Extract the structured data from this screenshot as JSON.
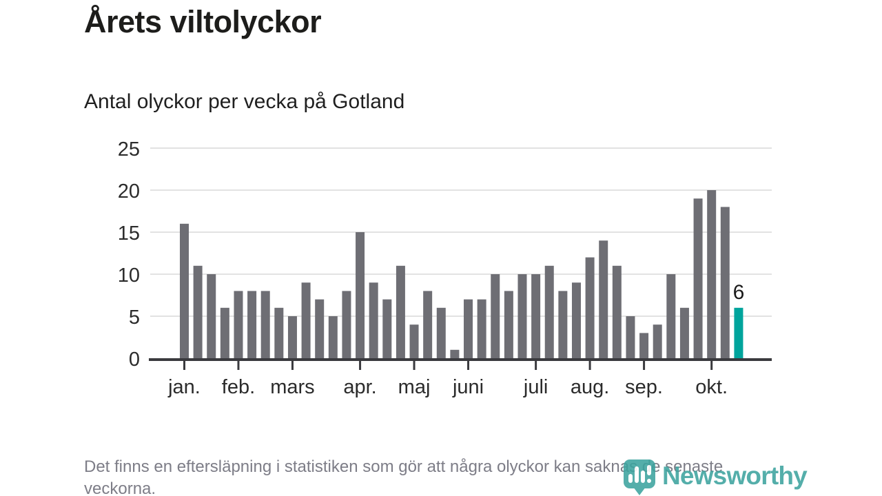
{
  "header": {
    "title": "Årets viltolyckor",
    "subtitle": "Antal olyckor per vecka på Gotland"
  },
  "chart_data": {
    "type": "bar",
    "title": "Årets viltolyckor",
    "subtitle": "Antal olyckor per vecka på Gotland",
    "x_unit": "vecka (week of year)",
    "categories_weeks": [
      1,
      2,
      3,
      4,
      5,
      6,
      7,
      8,
      9,
      10,
      11,
      12,
      13,
      14,
      15,
      16,
      17,
      18,
      19,
      20,
      21,
      22,
      23,
      24,
      25,
      26,
      27,
      28,
      29,
      30,
      31,
      32,
      33,
      34,
      35,
      36,
      37,
      38,
      39,
      40,
      41,
      42
    ],
    "values": [
      16,
      11,
      10,
      6,
      8,
      8,
      8,
      6,
      5,
      9,
      7,
      5,
      8,
      15,
      9,
      7,
      11,
      4,
      8,
      6,
      1,
      7,
      7,
      10,
      8,
      10,
      10,
      11,
      8,
      9,
      12,
      14,
      11,
      5,
      3,
      4,
      10,
      6,
      19,
      20,
      18,
      6
    ],
    "highlight_index": 41,
    "highlight_label": "6",
    "ylim": [
      0,
      25
    ],
    "yticks": [
      0,
      5,
      10,
      15,
      20,
      25
    ],
    "grid": "horizontal",
    "legend": "none",
    "month_ticks": [
      {
        "label": "jan.",
        "week": 1
      },
      {
        "label": "feb.",
        "week": 5
      },
      {
        "label": "mars",
        "week": 9
      },
      {
        "label": "apr.",
        "week": 14
      },
      {
        "label": "maj",
        "week": 18
      },
      {
        "label": "juni",
        "week": 22
      },
      {
        "label": "juli",
        "week": 27
      },
      {
        "label": "aug.",
        "week": 31
      },
      {
        "label": "sep.",
        "week": 35
      },
      {
        "label": "okt.",
        "week": 40
      }
    ],
    "colors": {
      "bar": "#6e6e74",
      "highlight": "#00a49c",
      "grid": "#e2e2e2",
      "axis": "#3a3a3e",
      "tick_label": "#2b2b2b",
      "annotation": "#1a1a1a"
    }
  },
  "footnote": {
    "text": "Det finns en eftersläpning i statistiken som gör att några olyckor kan saknas de senaste veckorna."
  },
  "logo": {
    "text": "Newsworthy",
    "color": "#3ba39e"
  }
}
